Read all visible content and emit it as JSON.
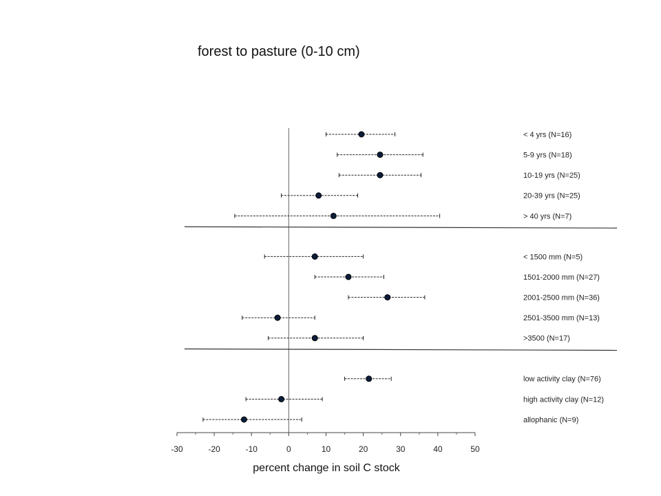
{
  "chart_data": {
    "type": "scatter",
    "title": "forest to pasture (0-10 cm)",
    "xlabel": "percent change in soil C stock",
    "ylabel": "",
    "xlim": [
      -30,
      50
    ],
    "xticks": [
      -30,
      -20,
      -10,
      0,
      10,
      20,
      30,
      40,
      50
    ],
    "grid": false,
    "legend": "none",
    "groups": [
      {
        "rows": [
          {
            "label": "< 4 yrs (N=16)",
            "value": 19.5,
            "ci": [
              10,
              28.5
            ]
          },
          {
            "label": "5-9 yrs (N=18)",
            "value": 24.5,
            "ci": [
              13,
              36
            ]
          },
          {
            "label": "10-19 yrs (N=25)",
            "value": 24.5,
            "ci": [
              13.5,
              35.5
            ]
          },
          {
            "label": "20-39 yrs (N=25)",
            "value": 8,
            "ci": [
              -2,
              18.5
            ]
          },
          {
            "label": "> 40 yrs (N=7)",
            "value": 12,
            "ci": [
              -14.5,
              40.5
            ]
          }
        ]
      },
      {
        "rows": [
          {
            "label": "< 1500 mm (N=5)",
            "value": 7,
            "ci": [
              -6.5,
              20
            ]
          },
          {
            "label": "1501-2000 mm (N=27)",
            "value": 16,
            "ci": [
              7,
              25.5
            ]
          },
          {
            "label": "2001-2500 mm (N=36)",
            "value": 26.5,
            "ci": [
              16,
              36.5
            ]
          },
          {
            "label": "2501-3500 mm (N=13)",
            "value": -3,
            "ci": [
              -12.5,
              7
            ]
          },
          {
            "label": ">3500 (N=17)",
            "value": 7,
            "ci": [
              -5.5,
              20
            ]
          }
        ]
      },
      {
        "rows": [
          {
            "label": "low activity clay (N=76)",
            "value": 21.5,
            "ci": [
              15,
              27.5
            ]
          },
          {
            "label": "high activity clay (N=12)",
            "value": -2,
            "ci": [
              -11.5,
              9
            ]
          },
          {
            "label": "allophanic (N=9)",
            "value": -12,
            "ci": [
              -23,
              3.5
            ]
          }
        ]
      }
    ],
    "colors": {
      "point": "#0b1d3a",
      "line": "#222222"
    }
  }
}
